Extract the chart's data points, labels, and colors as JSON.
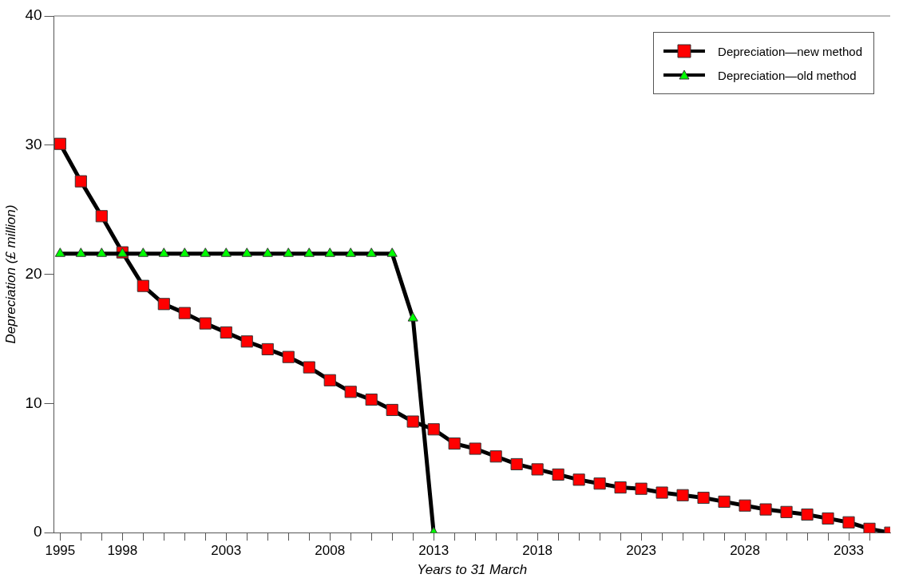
{
  "chart_data": {
    "type": "line",
    "xlabel": "Years to 31 March",
    "ylabel": "Depreciation (£ million)",
    "xlim": [
      1994.7,
      2035
    ],
    "ylim": [
      0,
      40
    ],
    "yticks": [
      0,
      10,
      20,
      30,
      40
    ],
    "xticks": [
      {
        "value": 1995,
        "label": "1995"
      },
      {
        "value": 1996,
        "label": null
      },
      {
        "value": 1997,
        "label": null
      },
      {
        "value": 1998,
        "label": "1998"
      },
      {
        "value": 1999,
        "label": null
      },
      {
        "value": 2000,
        "label": null
      },
      {
        "value": 2001,
        "label": null
      },
      {
        "value": 2002,
        "label": null
      },
      {
        "value": 2003,
        "label": "2003"
      },
      {
        "value": 2004,
        "label": null
      },
      {
        "value": 2005,
        "label": null
      },
      {
        "value": 2006,
        "label": null
      },
      {
        "value": 2007,
        "label": null
      },
      {
        "value": 2008,
        "label": "2008"
      },
      {
        "value": 2009,
        "label": null
      },
      {
        "value": 2010,
        "label": null
      },
      {
        "value": 2011,
        "label": null
      },
      {
        "value": 2012,
        "label": null
      },
      {
        "value": 2013,
        "label": "2013"
      },
      {
        "value": 2014,
        "label": null
      },
      {
        "value": 2015,
        "label": null
      },
      {
        "value": 2016,
        "label": null
      },
      {
        "value": 2017,
        "label": null
      },
      {
        "value": 2018,
        "label": "2018"
      },
      {
        "value": 2019,
        "label": null
      },
      {
        "value": 2020,
        "label": null
      },
      {
        "value": 2021,
        "label": null
      },
      {
        "value": 2022,
        "label": null
      },
      {
        "value": 2023,
        "label": "2023"
      },
      {
        "value": 2024,
        "label": null
      },
      {
        "value": 2025,
        "label": null
      },
      {
        "value": 2026,
        "label": null
      },
      {
        "value": 2027,
        "label": null
      },
      {
        "value": 2028,
        "label": "2028"
      },
      {
        "value": 2029,
        "label": null
      },
      {
        "value": 2030,
        "label": null
      },
      {
        "value": 2031,
        "label": null
      },
      {
        "value": 2032,
        "label": null
      },
      {
        "value": 2033,
        "label": "2033"
      },
      {
        "value": 2034,
        "label": null
      }
    ],
    "grid": false,
    "legend": "top right",
    "line_style": "solid",
    "series": [
      {
        "name": "Depreciation—new method",
        "color": "#ff0000",
        "marker": "square",
        "x": [
          1995,
          1996,
          1997,
          1998,
          1999,
          2000,
          2001,
          2002,
          2003,
          2004,
          2005,
          2006,
          2007,
          2008,
          2009,
          2010,
          2011,
          2012,
          2013,
          2014,
          2015,
          2016,
          2017,
          2018,
          2019,
          2020,
          2021,
          2022,
          2023,
          2024,
          2025,
          2026,
          2027,
          2028,
          2029,
          2030,
          2031,
          2032,
          2033,
          2034,
          2035
        ],
        "values": [
          30.1,
          27.2,
          24.5,
          21.7,
          19.1,
          17.7,
          17,
          16.2,
          15.5,
          14.8,
          14.2,
          13.6,
          12.8,
          11.8,
          10.9,
          10.3,
          9.5,
          8.6,
          8,
          6.9,
          6.5,
          5.9,
          5.3,
          4.9,
          4.5,
          4.1,
          3.8,
          3.5,
          3.4,
          3.1,
          2.9,
          2.7,
          2.4,
          2.1,
          1.8,
          1.6,
          1.4,
          1.1,
          0.8,
          0.3,
          0
        ]
      },
      {
        "name": "Depreciation—old method",
        "color": "#00ff00",
        "marker": "triangle",
        "x": [
          1995,
          1996,
          1997,
          1998,
          1999,
          2000,
          2001,
          2002,
          2003,
          2004,
          2005,
          2006,
          2007,
          2008,
          2009,
          2010,
          2011,
          2012,
          2013
        ],
        "values": [
          21.6,
          21.6,
          21.6,
          21.6,
          21.6,
          21.6,
          21.6,
          21.6,
          21.6,
          21.6,
          21.6,
          21.6,
          21.6,
          21.6,
          21.6,
          21.6,
          21.6,
          16.6,
          0
        ]
      }
    ]
  }
}
